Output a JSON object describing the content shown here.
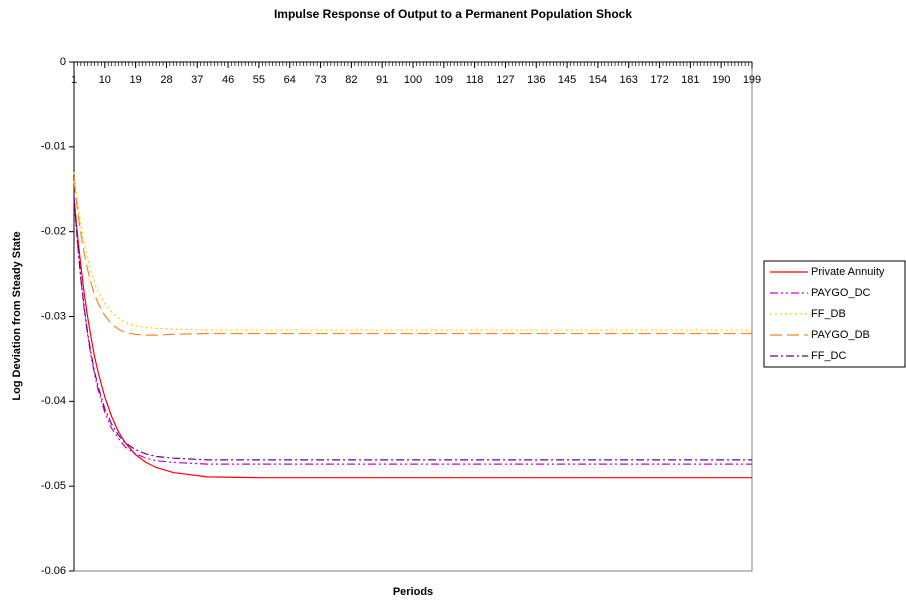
{
  "chart_data": {
    "type": "line",
    "title": "Impulse Response of Output to a Permanent Population Shock",
    "x_label": "Periods",
    "y_label": "Log Deviation from Steady State",
    "x": [
      1,
      2,
      3,
      4,
      5,
      6,
      7,
      8,
      10,
      12,
      14,
      16,
      19,
      22,
      25,
      30,
      40,
      55,
      80,
      120,
      160,
      199
    ],
    "xlim": [
      1,
      199
    ],
    "xticks": [
      1,
      10,
      19,
      28,
      37,
      46,
      55,
      64,
      73,
      82,
      91,
      100,
      109,
      118,
      127,
      136,
      145,
      154,
      163,
      172,
      181,
      190,
      199
    ],
    "ylim": [
      -0.06,
      0
    ],
    "yticks": [
      0,
      -0.01,
      -0.02,
      -0.03,
      -0.04,
      -0.05,
      -0.06
    ],
    "legend": "right",
    "series": [
      {
        "name": "Private Annuity",
        "color": "#ff0000",
        "dash": "solid",
        "values": [
          -0.016,
          -0.0203,
          -0.024,
          -0.0273,
          -0.0301,
          -0.0325,
          -0.0347,
          -0.0365,
          -0.0395,
          -0.0418,
          -0.0436,
          -0.0449,
          -0.0463,
          -0.0472,
          -0.0478,
          -0.0484,
          -0.0489,
          -0.049,
          -0.049,
          -0.049,
          -0.049,
          -0.049
        ]
      },
      {
        "name": "PAYGO_DC",
        "color": "#cc00cc",
        "dash": "dashdotdot",
        "values": [
          -0.016,
          -0.0212,
          -0.0256,
          -0.0292,
          -0.0322,
          -0.0347,
          -0.0368,
          -0.0386,
          -0.0413,
          -0.0432,
          -0.0444,
          -0.0454,
          -0.0462,
          -0.0467,
          -0.047,
          -0.0472,
          -0.0474,
          -0.0474,
          -0.0474,
          -0.0474,
          -0.0474,
          -0.0474
        ]
      },
      {
        "name": "FF_DB",
        "color": "#ffcc00",
        "dash": "dotted",
        "values": [
          -0.013,
          -0.0164,
          -0.0191,
          -0.0214,
          -0.0232,
          -0.0248,
          -0.026,
          -0.027,
          -0.0285,
          -0.0295,
          -0.0302,
          -0.0307,
          -0.0311,
          -0.0313,
          -0.0314,
          -0.0315,
          -0.0316,
          -0.0316,
          -0.0316,
          -0.0316,
          -0.0316,
          -0.0316
        ]
      },
      {
        "name": "PAYGO_DB",
        "color": "#f08a24",
        "dash": "longdash",
        "values": [
          -0.014,
          -0.0174,
          -0.0202,
          -0.0226,
          -0.0245,
          -0.0261,
          -0.0274,
          -0.0284,
          -0.0299,
          -0.0309,
          -0.0315,
          -0.0319,
          -0.0321,
          -0.0322,
          -0.0322,
          -0.0321,
          -0.032,
          -0.032,
          -0.032,
          -0.032,
          -0.032,
          -0.032
        ]
      },
      {
        "name": "FF_DC",
        "color": "#660099",
        "dash": "dashdot",
        "values": [
          -0.016,
          -0.0211,
          -0.0255,
          -0.029,
          -0.032,
          -0.0344,
          -0.0365,
          -0.0382,
          -0.0409,
          -0.0427,
          -0.044,
          -0.0449,
          -0.0457,
          -0.0462,
          -0.0465,
          -0.0467,
          -0.0469,
          -0.0469,
          -0.0469,
          -0.0469,
          -0.0469,
          -0.0469
        ]
      }
    ]
  }
}
